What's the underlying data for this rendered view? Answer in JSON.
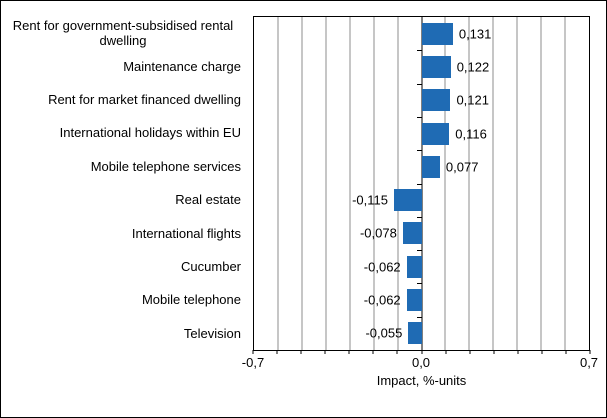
{
  "chart_data": {
    "type": "bar",
    "orientation": "horizontal",
    "categories": [
      "Rent for government-subsidised rental dwelling",
      "Maintenance charge",
      "Rent for market financed dwelling",
      "International holidays within EU",
      "Mobile telephone services",
      "Real estate",
      "International flights",
      "Cucumber",
      "Mobile telephone",
      "Television"
    ],
    "values": [
      0.131,
      0.122,
      0.121,
      0.116,
      0.077,
      -0.115,
      -0.078,
      -0.062,
      -0.062,
      -0.055
    ],
    "value_labels": [
      "0,131",
      "0,122",
      "0,121",
      "0,116",
      "0,077",
      "-0,115",
      "-0,078",
      "-0,062",
      "-0,062",
      "-0,055"
    ],
    "xlabel": "Impact, %-units",
    "xlim": [
      -0.7,
      0.7
    ],
    "gridline_interval": 0.1,
    "grid": true,
    "xtick_labels": [
      "-0,7",
      "0,0",
      "0,7"
    ],
    "bar_color": "#1f6bb4",
    "gridline_color": "#8c8c8c",
    "axis_color": "#000000",
    "background": "#ffffff"
  }
}
